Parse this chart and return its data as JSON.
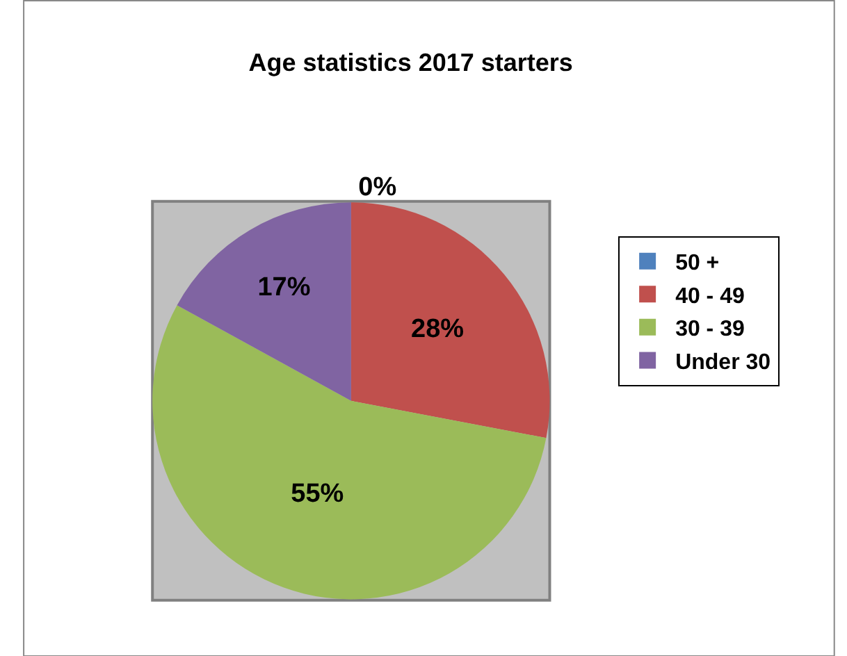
{
  "chart_data": {
    "type": "pie",
    "title": "Age statistics 2017 starters",
    "categories": [
      "50 +",
      "40 - 49",
      "30 - 39",
      "Under 30"
    ],
    "values": [
      0,
      28,
      55,
      17
    ],
    "colors": [
      "#4f81bd",
      "#c0504d",
      "#9bbb59",
      "#8064a2"
    ],
    "value_labels": [
      "0%",
      "28%",
      "55%",
      "17%"
    ],
    "legend": "right"
  }
}
